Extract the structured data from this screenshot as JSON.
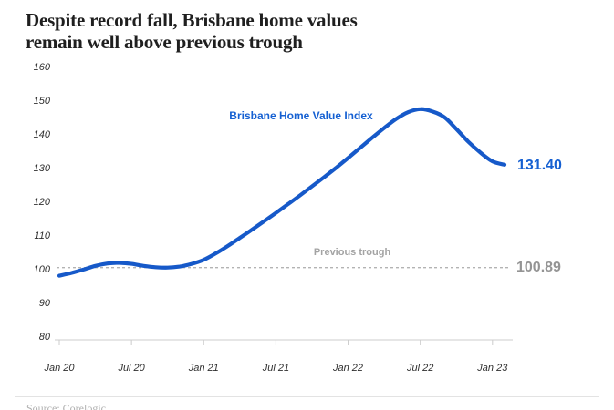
{
  "title": {
    "line1": "Despite record fall, Brisbane home values",
    "line2": "remain well above previous trough"
  },
  "source": "Source: Corelogic",
  "colors": {
    "line_blue": "#1659c9",
    "label_blue": "#1560d2",
    "trough_gray": "#a3a3a3",
    "trough_value_gray": "#949494",
    "axis_gray": "#cccccc",
    "dashed_gray": "#b3b3b3",
    "title_color": "#1f1f1f",
    "tick_text": "#2f2f2f"
  },
  "chart_data": {
    "type": "line",
    "title": "Despite record fall, Brisbane home values remain well above previous trough",
    "legend_label": "Brisbane Home Value Index",
    "categories": [
      "Jan 20",
      "Feb 20",
      "Mar 20",
      "Apr 20",
      "May 20",
      "Jun 20",
      "Jul 20",
      "Aug 20",
      "Sep 20",
      "Oct 20",
      "Nov 20",
      "Dec 20",
      "Jan 21",
      "Feb 21",
      "Mar 21",
      "Apr 21",
      "May 21",
      "Jun 21",
      "Jul 21",
      "Aug 21",
      "Sep 21",
      "Oct 21",
      "Nov 21",
      "Dec 21",
      "Jan 22",
      "Feb 22",
      "Mar 22",
      "Apr 22",
      "May 22",
      "Jun 22",
      "Jul 22",
      "Aug 22",
      "Sep 22",
      "Oct 22",
      "Nov 22",
      "Dec 22",
      "Jan 23",
      "Feb 23"
    ],
    "series": [
      {
        "name": "Brisbane Home Value Index",
        "values": [
          98.5,
          99.3,
          100.3,
          101.4,
          102.1,
          102.3,
          102.0,
          101.4,
          101.0,
          100.89,
          101.2,
          102.0,
          103.2,
          105.1,
          107.3,
          109.7,
          112.1,
          114.6,
          117.1,
          119.7,
          122.3,
          125.0,
          127.7,
          130.5,
          133.4,
          136.4,
          139.4,
          142.3,
          145.0,
          147.0,
          147.9,
          147.2,
          145.5,
          142.0,
          138.2,
          135.0,
          132.4,
          131.4
        ]
      }
    ],
    "x_tick_labels": [
      "Jan 20",
      "Jul 20",
      "Jan 21",
      "Jul 21",
      "Jan 22",
      "Jul 22",
      "Jan 23"
    ],
    "x_tick_months": [
      0,
      6,
      12,
      18,
      24,
      30,
      36
    ],
    "y_ticks": [
      160,
      150,
      140,
      130,
      120,
      110,
      100,
      90,
      80
    ],
    "ylim": [
      80,
      160
    ],
    "grid": false,
    "legend_position": "inside-top",
    "reference_line": {
      "label": "Previous trough",
      "value": 100.89,
      "display": "100.89"
    },
    "end_label": "131.40",
    "last_value": 131.4
  }
}
